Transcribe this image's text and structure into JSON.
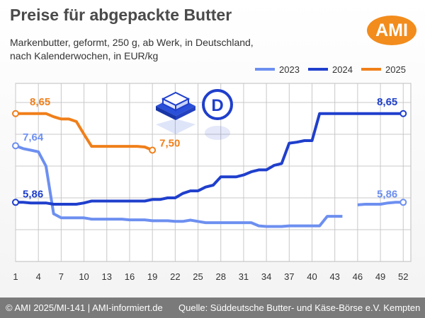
{
  "header": {
    "title": "Preise für abgepackte Butter",
    "subtitle_line1": "Markenbutter, geformt, 250 g, ab Werk, in Deutschland,",
    "subtitle_line2": "nach Kalenderwochen, in EUR/kg",
    "logo_text": "AMI"
  },
  "footer": {
    "left": "© AMI 2025/MI-141 | AMI-informiert.de",
    "right": "Quelle: Süddeutsche Butter- und Käse-Börse e.V. Kempten"
  },
  "colors": {
    "2023": "#6d8ff0",
    "2024": "#1f3fcc",
    "2025": "#f07f1a",
    "logo": "#f28c1c"
  },
  "icons": [
    "butter-package-icon",
    "germany-d-icon"
  ],
  "chart_data": {
    "type": "line",
    "title": "Preise für abgepackte Butter",
    "xlabel": "",
    "ylabel": "",
    "x_ticks": [
      1,
      4,
      7,
      10,
      13,
      16,
      19,
      22,
      25,
      28,
      31,
      34,
      37,
      40,
      43,
      46,
      49,
      52
    ],
    "xlim": [
      1,
      53
    ],
    "ylim": [
      4.0,
      9.6
    ],
    "grid": true,
    "legend_position": "top-right",
    "series": [
      {
        "name": "2023",
        "color": "#6d8ff0",
        "points": [
          [
            1,
            7.64
          ],
          [
            2,
            7.55
          ],
          [
            3,
            7.5
          ],
          [
            4,
            7.45
          ],
          [
            5,
            7.0
          ],
          [
            6,
            5.5
          ],
          [
            7,
            5.37
          ],
          [
            8,
            5.37
          ],
          [
            9,
            5.37
          ],
          [
            10,
            5.37
          ],
          [
            11,
            5.33
          ],
          [
            12,
            5.33
          ],
          [
            13,
            5.33
          ],
          [
            14,
            5.33
          ],
          [
            15,
            5.33
          ],
          [
            16,
            5.31
          ],
          [
            17,
            5.31
          ],
          [
            18,
            5.31
          ],
          [
            19,
            5.28
          ],
          [
            20,
            5.28
          ],
          [
            21,
            5.28
          ],
          [
            22,
            5.26
          ],
          [
            23,
            5.26
          ],
          [
            24,
            5.3
          ],
          [
            25,
            5.26
          ],
          [
            26,
            5.22
          ],
          [
            27,
            5.22
          ],
          [
            28,
            5.22
          ],
          [
            29,
            5.22
          ],
          [
            30,
            5.22
          ],
          [
            31,
            5.22
          ],
          [
            32,
            5.22
          ],
          [
            33,
            5.12
          ],
          [
            34,
            5.1
          ],
          [
            35,
            5.1
          ],
          [
            36,
            5.1
          ],
          [
            37,
            5.12
          ],
          [
            38,
            5.12
          ],
          [
            39,
            5.12
          ],
          [
            40,
            5.12
          ],
          [
            41,
            5.12
          ],
          [
            42,
            5.42
          ],
          [
            43,
            5.42
          ],
          [
            44,
            5.42
          ],
          null,
          [
            46,
            5.78
          ],
          [
            47,
            5.8
          ],
          [
            48,
            5.8
          ],
          [
            49,
            5.8
          ],
          [
            50,
            5.84
          ],
          [
            51,
            5.86
          ],
          [
            52,
            5.86
          ]
        ],
        "label_start": "7,64",
        "label_end": "5,86"
      },
      {
        "name": "2024",
        "color": "#1f3fcc",
        "points": [
          [
            1,
            5.86
          ],
          [
            2,
            5.86
          ],
          [
            3,
            5.84
          ],
          [
            4,
            5.84
          ],
          [
            5,
            5.84
          ],
          [
            6,
            5.8
          ],
          [
            7,
            5.8
          ],
          [
            8,
            5.8
          ],
          [
            9,
            5.8
          ],
          [
            10,
            5.84
          ],
          [
            11,
            5.9
          ],
          [
            12,
            5.9
          ],
          [
            13,
            5.9
          ],
          [
            14,
            5.9
          ],
          [
            15,
            5.9
          ],
          [
            16,
            5.9
          ],
          [
            17,
            5.9
          ],
          [
            18,
            5.9
          ],
          [
            19,
            5.95
          ],
          [
            20,
            5.95
          ],
          [
            21,
            6.0
          ],
          [
            22,
            6.0
          ],
          [
            23,
            6.14
          ],
          [
            24,
            6.22
          ],
          [
            25,
            6.22
          ],
          [
            26,
            6.34
          ],
          [
            27,
            6.4
          ],
          [
            28,
            6.66
          ],
          [
            29,
            6.66
          ],
          [
            30,
            6.66
          ],
          [
            31,
            6.72
          ],
          [
            32,
            6.82
          ],
          [
            33,
            6.88
          ],
          [
            34,
            6.88
          ],
          [
            35,
            7.02
          ],
          [
            36,
            7.08
          ],
          [
            37,
            7.72
          ],
          [
            38,
            7.75
          ],
          [
            39,
            7.8
          ],
          [
            40,
            7.8
          ],
          [
            41,
            8.65
          ],
          [
            42,
            8.65
          ],
          [
            43,
            8.65
          ],
          [
            44,
            8.65
          ],
          [
            45,
            8.65
          ],
          [
            46,
            8.65
          ],
          [
            47,
            8.65
          ],
          [
            48,
            8.65
          ],
          [
            49,
            8.65
          ],
          [
            50,
            8.65
          ],
          [
            51,
            8.65
          ],
          [
            52,
            8.65
          ]
        ],
        "label_start": "5,86",
        "label_end": "8,65"
      },
      {
        "name": "2025",
        "color": "#f07f1a",
        "points": [
          [
            1,
            8.65
          ],
          [
            2,
            8.65
          ],
          [
            3,
            8.65
          ],
          [
            4,
            8.65
          ],
          [
            5,
            8.65
          ],
          [
            6,
            8.55
          ],
          [
            7,
            8.48
          ],
          [
            8,
            8.48
          ],
          [
            9,
            8.4
          ],
          [
            10,
            8.0
          ],
          [
            11,
            7.62
          ],
          [
            12,
            7.62
          ],
          [
            13,
            7.62
          ],
          [
            14,
            7.62
          ],
          [
            15,
            7.62
          ],
          [
            16,
            7.62
          ],
          [
            17,
            7.62
          ],
          [
            18,
            7.6
          ],
          [
            19,
            7.5
          ]
        ],
        "label_start": "8,65",
        "label_end": "7,50"
      }
    ]
  }
}
